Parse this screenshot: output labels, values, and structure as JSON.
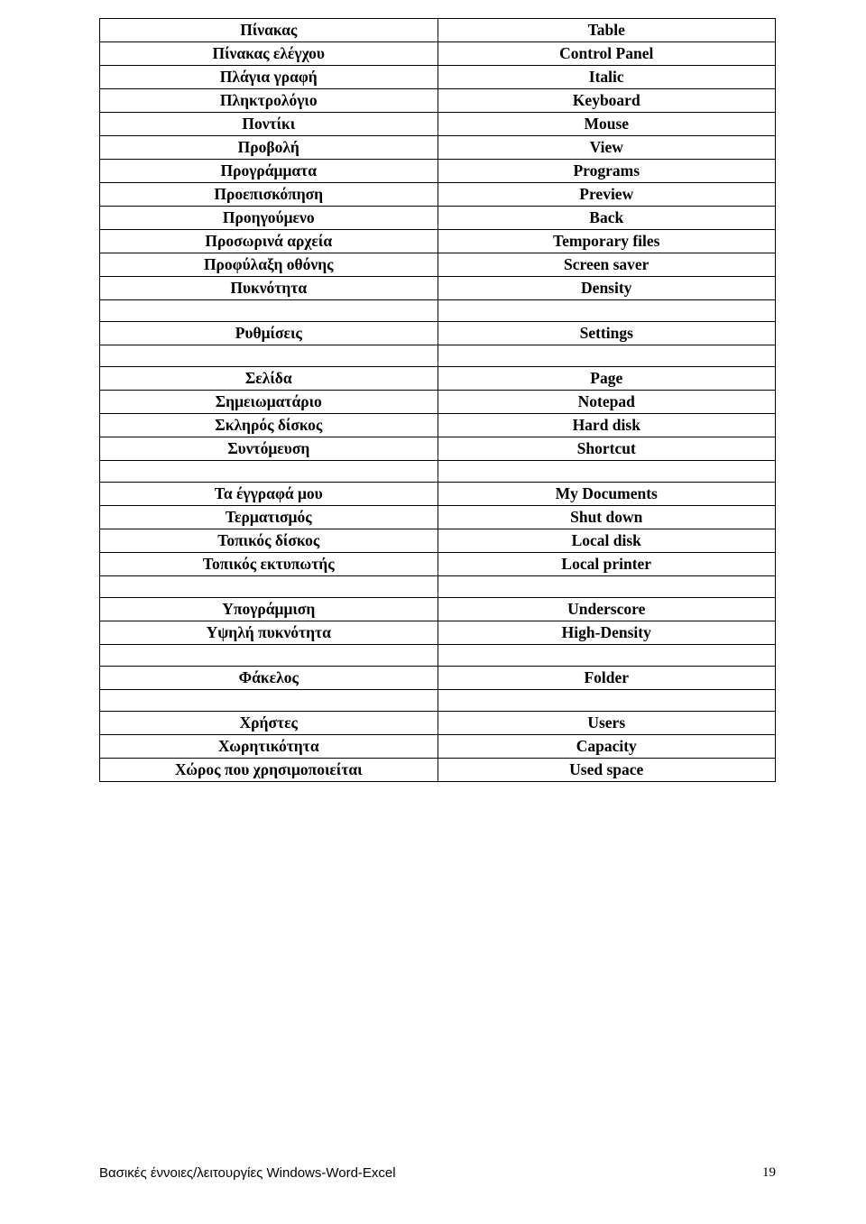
{
  "rows": [
    {
      "l": "Πίνακας",
      "r": "Table"
    },
    {
      "l": "Πίνακας ελέγχου",
      "r": "Control Panel"
    },
    {
      "l": "Πλάγια γραφή",
      "r": "Italic"
    },
    {
      "l": "Πληκτρολόγιο",
      "r": "Keyboard"
    },
    {
      "l": "Ποντίκι",
      "r": "Mouse"
    },
    {
      "l": "Προβολή",
      "r": "View"
    },
    {
      "l": "Προγράμματα",
      "r": "Programs"
    },
    {
      "l": "Προεπισκόπηση",
      "r": "Preview"
    },
    {
      "l": "Προηγούμενο",
      "r": "Back"
    },
    {
      "l": "Προσωρινά αρχεία",
      "r": "Temporary files"
    },
    {
      "l": "Προφύλαξη οθόνης",
      "r": "Screen saver"
    },
    {
      "l": "Πυκνότητα",
      "r": "Density"
    },
    {
      "spacer": true
    },
    {
      "l": "Ρυθμίσεις",
      "r": "Settings"
    },
    {
      "spacer": true
    },
    {
      "l": "Σελίδα",
      "r": "Page"
    },
    {
      "l": "Σημειωματάριο",
      "r": "Notepad"
    },
    {
      "l": "Σκληρός δίσκος",
      "r": "Hard disk"
    },
    {
      "l": "Συντόμευση",
      "r": "Shortcut"
    },
    {
      "spacer": true
    },
    {
      "l": "Τα έγγραφά μου",
      "r": "My Documents"
    },
    {
      "l": "Τερματισμός",
      "r": "Shut down"
    },
    {
      "l": "Τοπικός δίσκος",
      "r": "Local disk"
    },
    {
      "l": "Τοπικός εκτυπωτής",
      "r": "Local printer"
    },
    {
      "spacer": true
    },
    {
      "l": "Υπογράμμιση",
      "r": "Underscore"
    },
    {
      "l": "Υψηλή πυκνότητα",
      "r": "High-Density"
    },
    {
      "spacer": true
    },
    {
      "l": "Φάκελος",
      "r": "Folder"
    },
    {
      "spacer": true
    },
    {
      "l": "Χρήστες",
      "r": "Users"
    },
    {
      "l": "Χωρητικότητα",
      "r": "Capacity"
    },
    {
      "l": "Χώρος που χρησιμοποιείται",
      "r": "Used space"
    }
  ],
  "footer": {
    "text": "Βασικές έννοιες/λειτουργίες Windows-Word-Excel",
    "page": "19"
  }
}
